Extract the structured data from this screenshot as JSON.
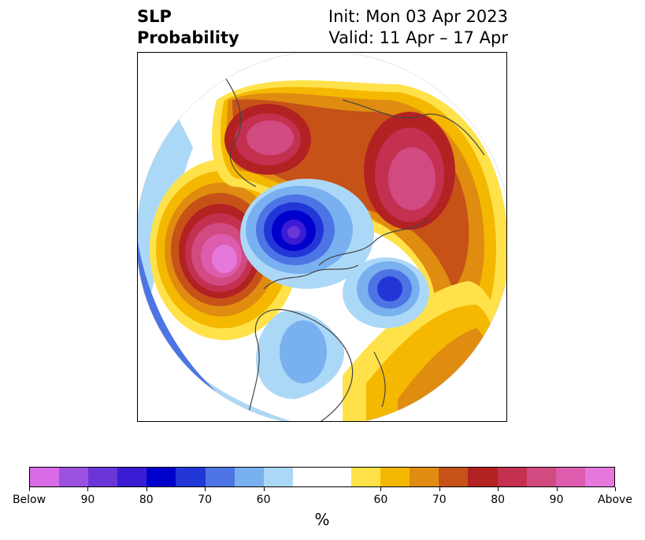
{
  "title": {
    "left_line1": "SLP",
    "left_line2": "Probability",
    "right_line1": "Init: Mon 03 Apr 2023",
    "right_line2": "Valid: 11 Apr – 17 Apr"
  },
  "colorbar": {
    "colors": [
      "#d96ce6",
      "#9c52e0",
      "#6b36d8",
      "#3b1bd4",
      "#0000cc",
      "#2236d8",
      "#4d74e4",
      "#79b0f0",
      "#acd8f8",
      "#ffffff",
      "#ffffff",
      "#ffe24a",
      "#f5b800",
      "#e08c10",
      "#c65218",
      "#b22222",
      "#c43050",
      "#d14a80",
      "#dd5cad",
      "#e678dc"
    ],
    "tick_labels": [
      "Below",
      "90",
      "80",
      "70",
      "60",
      "60",
      "70",
      "80",
      "90",
      "Above"
    ],
    "unit_label": "%"
  },
  "colors": {
    "land_border": "#444444",
    "frame": "#000000"
  }
}
